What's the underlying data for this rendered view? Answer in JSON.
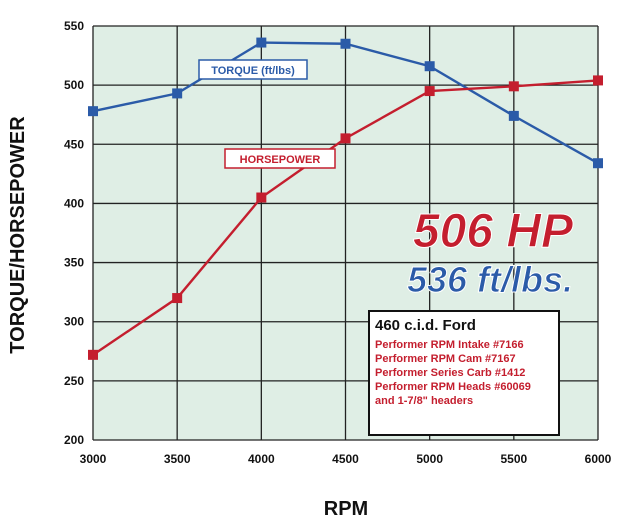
{
  "chart_data": {
    "type": "line",
    "xlabel": "RPM",
    "ylabel": "TORQUE/HORSEPOWER",
    "x": [
      3000,
      3500,
      4000,
      4500,
      5000,
      5500,
      6000
    ],
    "xlim": [
      3000,
      6000
    ],
    "ylim": [
      200,
      550
    ],
    "x_ticks": [
      "3000",
      "3500",
      "4000",
      "4500",
      "5000",
      "5500",
      "6000"
    ],
    "y_ticks": [
      "550",
      "500",
      "450",
      "400",
      "350",
      "300",
      "250",
      "200"
    ],
    "grid": true,
    "series": [
      {
        "name": "TORQUE (ft/lbs)",
        "color": "#2b5ba8",
        "values": [
          478,
          493,
          536,
          535,
          516,
          474,
          434
        ]
      },
      {
        "name": "HORSEPOWER",
        "color": "#c41e2e",
        "values": [
          272,
          320,
          405,
          455,
          495,
          499,
          504
        ]
      }
    ],
    "annotations": {
      "peak_hp": "506 HP",
      "peak_torque": "536 ft/lbs.",
      "spec_title": "460 c.i.d. Ford",
      "spec_lines": [
        "Performer RPM Intake #7166",
        "Performer RPM Cam #7167",
        "Performer Series Carb #1412",
        "Performer RPM Heads #60069",
        "and 1-7/8\" headers"
      ]
    },
    "colors": {
      "plot_background": "#dfeee5",
      "grid": "#222222"
    }
  }
}
